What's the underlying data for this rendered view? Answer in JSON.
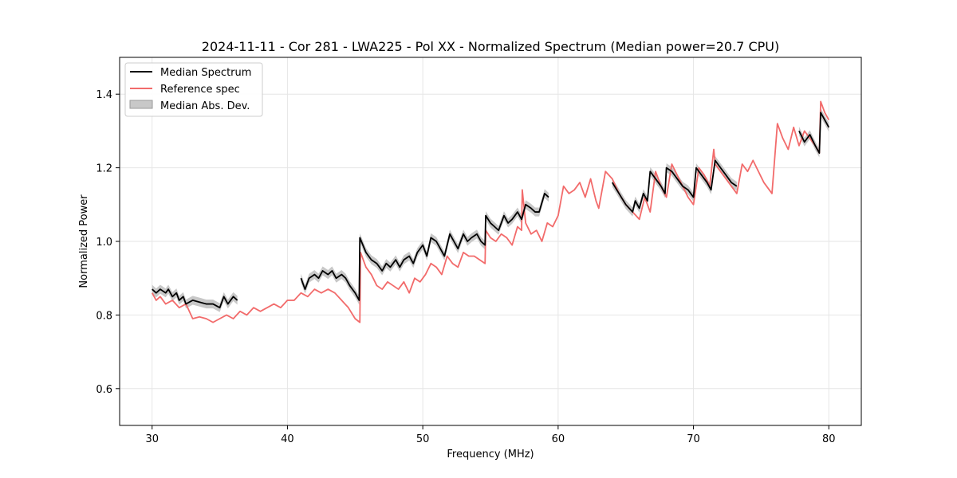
{
  "chart_data": {
    "type": "line",
    "title": "2024-11-11 - Cor 281 - LWA225 - Pol XX - Normalized Spectrum (Median power=20.7 CPU)",
    "xlabel": "Frequency (MHz)",
    "ylabel": "Normalized Power",
    "xlim": [
      27.6,
      82.4
    ],
    "ylim": [
      0.5,
      1.5
    ],
    "xticks": [
      30,
      40,
      50,
      60,
      70,
      80
    ],
    "yticks": [
      0.6,
      0.8,
      1.0,
      1.2,
      1.4
    ],
    "xtick_labels": [
      "30",
      "40",
      "50",
      "60",
      "70",
      "80"
    ],
    "ytick_labels": [
      "0.6",
      "0.8",
      "1.0",
      "1.2",
      "1.4"
    ],
    "grid": true,
    "legend_position": "top-left",
    "legend": [
      "Median Spectrum",
      "Reference spec",
      "Median Abs. Dev."
    ],
    "colors": {
      "median": "#000000",
      "reference": "#f26b6b",
      "mad": "#c8c8c8",
      "grid": "#e6e6e6"
    },
    "mad_halfwidth": 0.012,
    "series": [
      {
        "name": "Median Spectrum",
        "segments": [
          {
            "x": [
              30.0,
              30.3,
              30.6,
              31.0,
              31.2,
              31.5,
              31.8,
              32.0,
              32.3,
              32.5,
              33.0,
              33.5,
              34.0,
              34.5,
              35.0,
              35.3,
              35.6,
              36.0,
              36.3
            ],
            "y": [
              0.87,
              0.86,
              0.87,
              0.86,
              0.87,
              0.85,
              0.86,
              0.84,
              0.85,
              0.83,
              0.84,
              0.835,
              0.83,
              0.83,
              0.82,
              0.85,
              0.83,
              0.85,
              0.84
            ]
          },
          {
            "x": [
              41.0,
              41.3,
              41.6,
              42.0,
              42.3,
              42.6,
              43.0,
              43.3,
              43.6,
              44.0,
              44.3,
              44.6,
              45.0,
              45.3,
              45.35,
              45.8,
              46.2,
              46.6,
              47.0,
              47.3,
              47.6,
              48.0,
              48.3,
              48.6,
              49.0,
              49.3,
              49.6,
              50.0,
              50.3,
              50.6,
              51.0,
              51.3,
              51.6,
              52.0,
              52.3,
              52.6,
              53.0,
              53.3,
              53.6,
              54.0,
              54.3,
              54.6,
              54.65,
              55.0,
              55.3,
              55.6,
              56.0,
              56.3,
              56.6,
              57.0,
              57.3,
              57.6,
              58.0,
              58.3,
              58.6,
              59.0,
              59.3
            ],
            "y": [
              0.9,
              0.87,
              0.9,
              0.91,
              0.9,
              0.92,
              0.91,
              0.92,
              0.9,
              0.91,
              0.9,
              0.88,
              0.86,
              0.84,
              1.01,
              0.97,
              0.95,
              0.94,
              0.92,
              0.94,
              0.93,
              0.95,
              0.93,
              0.95,
              0.96,
              0.94,
              0.97,
              0.99,
              0.96,
              1.01,
              1.0,
              0.98,
              0.96,
              1.02,
              1.0,
              0.98,
              1.02,
              1.0,
              1.01,
              1.02,
              1.0,
              0.99,
              1.07,
              1.05,
              1.04,
              1.03,
              1.07,
              1.05,
              1.06,
              1.08,
              1.06,
              1.1,
              1.09,
              1.08,
              1.08,
              1.13,
              1.12
            ]
          },
          {
            "x": [
              64.0,
              64.5,
              65.0,
              65.5,
              65.7,
              66.0,
              66.3,
              66.6,
              66.8,
              67.2,
              67.6,
              67.9,
              68.0,
              68.4,
              68.8,
              69.2,
              69.6,
              70.0,
              70.2,
              70.6,
              71.0,
              71.3,
              71.6,
              72.0,
              72.4,
              72.8,
              73.2
            ],
            "y": [
              1.16,
              1.13,
              1.1,
              1.08,
              1.11,
              1.09,
              1.13,
              1.11,
              1.19,
              1.17,
              1.15,
              1.13,
              1.2,
              1.19,
              1.17,
              1.15,
              1.14,
              1.12,
              1.2,
              1.18,
              1.16,
              1.14,
              1.22,
              1.2,
              1.18,
              1.16,
              1.15
            ]
          },
          {
            "x": [
              77.8,
              78.2,
              78.6,
              79.0,
              79.3,
              79.4,
              79.7,
              80.0
            ],
            "y": [
              1.3,
              1.27,
              1.29,
              1.26,
              1.24,
              1.35,
              1.33,
              1.31
            ]
          }
        ]
      },
      {
        "name": "Reference spec",
        "segments": [
          {
            "x": [
              30.0,
              30.3,
              30.6,
              31.0,
              31.5,
              32.0,
              32.5,
              33.0,
              33.5,
              34.0,
              34.5,
              35.0,
              35.5,
              36.0,
              36.5,
              37.0,
              37.5,
              38.0,
              38.5,
              39.0,
              39.5,
              40.0,
              40.5,
              41.0,
              41.5,
              42.0,
              42.5,
              43.0,
              43.5,
              44.0,
              44.5,
              45.0,
              45.35,
              45.4,
              45.8,
              46.2,
              46.6,
              47.0,
              47.4,
              47.8,
              48.2,
              48.6,
              49.0,
              49.4,
              49.8,
              50.2,
              50.6,
              51.0,
              51.4,
              51.8,
              52.2,
              52.6,
              53.0,
              53.4,
              53.8,
              54.2,
              54.6,
              54.65,
              55.0,
              55.4,
              55.8,
              56.2,
              56.6,
              57.0,
              57.3,
              57.35,
              57.6,
              58.0,
              58.4,
              58.8,
              59.2,
              59.6,
              60.0,
              60.4,
              60.8,
              61.2,
              61.6,
              62.0,
              62.4,
              62.8,
              63.0,
              63.5,
              64.0,
              64.5,
              65.0,
              65.5,
              66.0,
              66.4,
              66.8,
              67.2,
              67.6,
              68.0,
              68.4,
              68.8,
              69.2,
              69.6,
              70.0,
              70.4,
              70.8,
              71.2,
              71.5,
              71.6,
              72.0,
              72.4,
              72.8,
              73.2,
              73.6,
              74.0,
              74.4,
              74.8,
              75.2,
              75.8,
              76.2,
              76.6,
              77.0,
              77.4,
              77.8,
              78.2,
              78.6,
              79.0,
              79.3,
              79.4,
              79.7,
              80.0
            ],
            "y": [
              0.86,
              0.84,
              0.85,
              0.83,
              0.84,
              0.82,
              0.83,
              0.79,
              0.795,
              0.79,
              0.78,
              0.79,
              0.8,
              0.79,
              0.81,
              0.8,
              0.82,
              0.81,
              0.82,
              0.83,
              0.82,
              0.84,
              0.84,
              0.86,
              0.85,
              0.87,
              0.86,
              0.87,
              0.86,
              0.84,
              0.82,
              0.79,
              0.78,
              0.97,
              0.93,
              0.91,
              0.88,
              0.87,
              0.89,
              0.88,
              0.87,
              0.89,
              0.86,
              0.9,
              0.89,
              0.91,
              0.94,
              0.93,
              0.91,
              0.96,
              0.94,
              0.93,
              0.97,
              0.96,
              0.96,
              0.95,
              0.94,
              1.03,
              1.01,
              1.0,
              1.02,
              1.01,
              0.99,
              1.04,
              1.03,
              1.14,
              1.05,
              1.02,
              1.03,
              1.0,
              1.05,
              1.04,
              1.07,
              1.15,
              1.13,
              1.14,
              1.16,
              1.12,
              1.17,
              1.11,
              1.09,
              1.19,
              1.17,
              1.13,
              1.1,
              1.08,
              1.06,
              1.12,
              1.08,
              1.19,
              1.15,
              1.12,
              1.21,
              1.18,
              1.15,
              1.12,
              1.1,
              1.2,
              1.18,
              1.15,
              1.25,
              1.21,
              1.19,
              1.17,
              1.15,
              1.13,
              1.21,
              1.19,
              1.22,
              1.19,
              1.16,
              1.13,
              1.32,
              1.28,
              1.25,
              1.31,
              1.26,
              1.3,
              1.28,
              1.26,
              1.24,
              1.38,
              1.35,
              1.33
            ]
          }
        ]
      }
    ]
  }
}
